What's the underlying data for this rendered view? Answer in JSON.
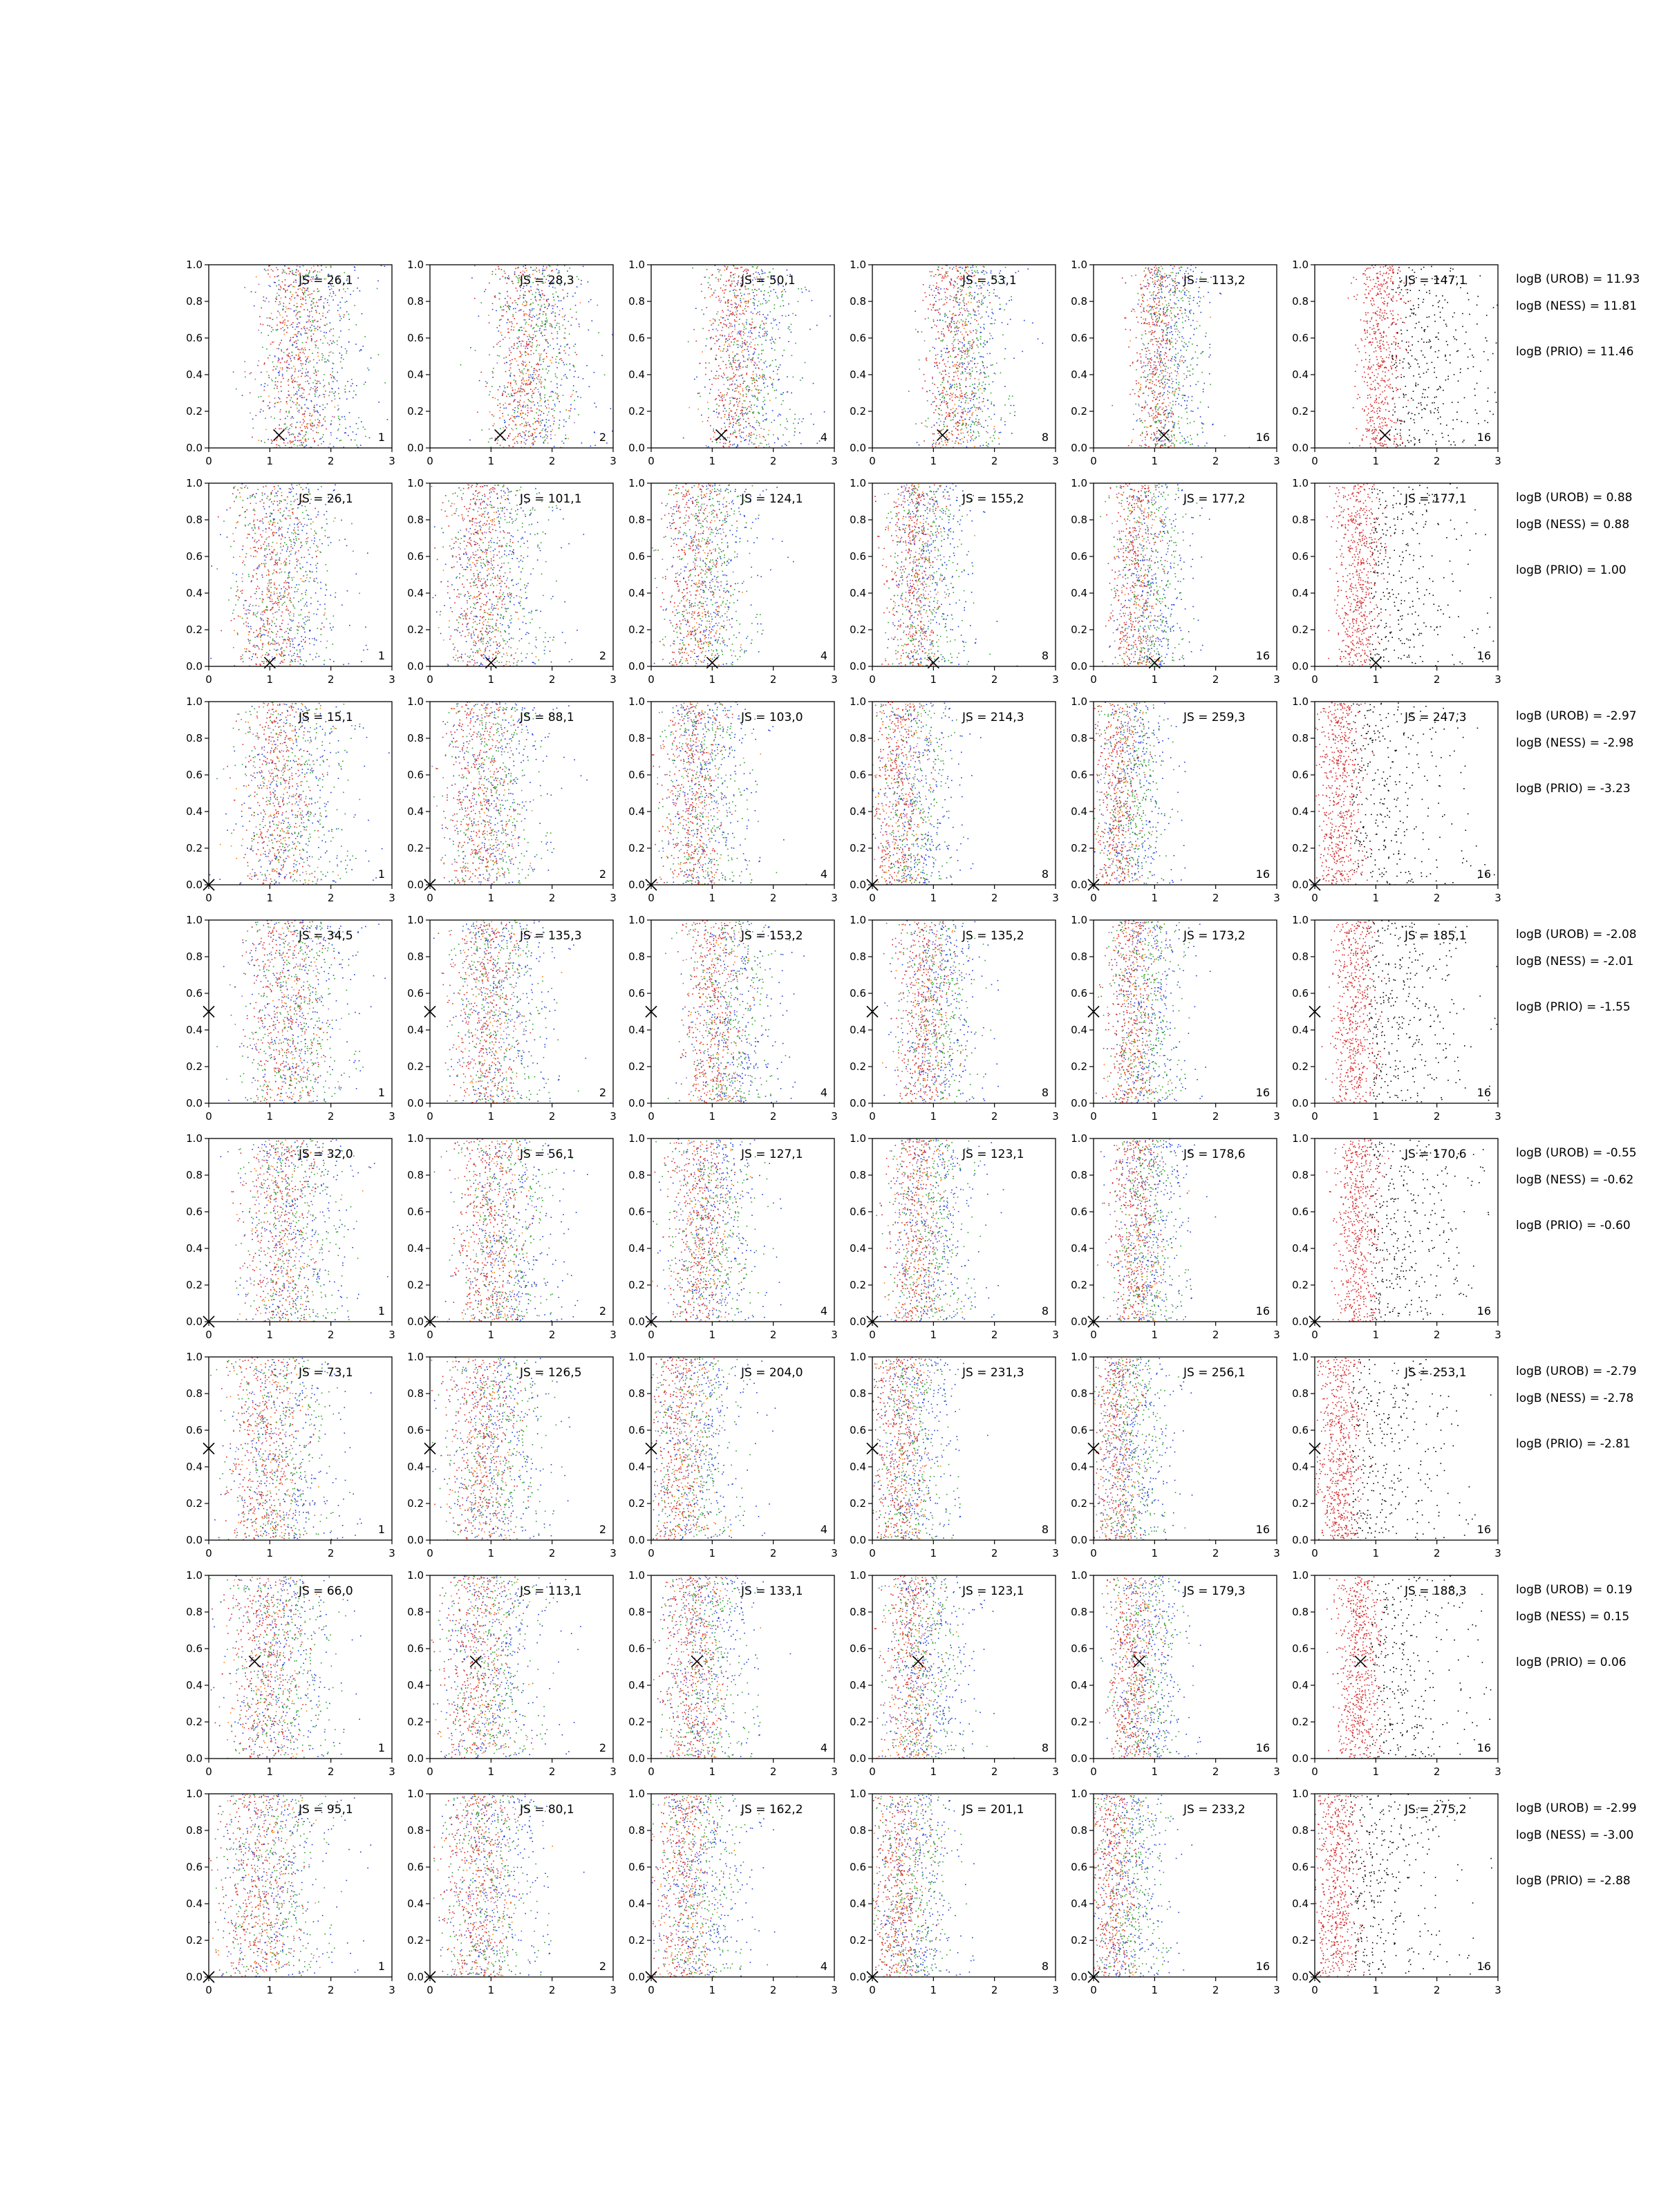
{
  "chart_data": {
    "type": "scatter",
    "layout": {
      "rows": 8,
      "cols": 6
    },
    "xlim": [
      0,
      3
    ],
    "ylim": [
      0,
      1
    ],
    "xticks": [
      0,
      1,
      2,
      3
    ],
    "yticks": [
      0.0,
      0.2,
      0.4,
      0.6,
      0.8,
      1.0
    ],
    "grid": false,
    "point_colors": [
      "#d62728",
      "#2ca02c",
      "#1f3fd6",
      "#ff7f0e",
      "#9467bd",
      "#000000"
    ],
    "panel_labels": [
      "1",
      "2",
      "4",
      "8",
      "16",
      "16"
    ],
    "rows": [
      {
        "js": [
          "JS = 26,1",
          "JS = 28,3",
          "JS = 50,1",
          "JS = 53,1",
          "JS = 113,2",
          "JS = 147,1"
        ],
        "true_value": [
          1.15,
          0.07
        ],
        "centers": [
          1.5,
          1.6,
          1.45,
          1.4,
          1.1,
          1.05
        ],
        "logB": {
          "urob": "logB (UROB) = 11.93",
          "ness": "logB (NESS) = 11.81",
          "prio": "logB (PRIO) = 11.46"
        }
      },
      {
        "js": [
          "JS = 26,1",
          "JS = 101,1",
          "JS = 124,1",
          "JS = 155,2",
          "JS = 177,2",
          "JS = 177,1"
        ],
        "true_value": [
          1.0,
          0.02
        ],
        "centers": [
          1.1,
          0.9,
          0.8,
          0.75,
          0.75,
          0.7
        ],
        "logB": {
          "urob": "logB (UROB) = 0.88",
          "ness": "logB (NESS) = 0.88",
          "prio": "logB (PRIO) = 1.00"
        }
      },
      {
        "js": [
          "JS = 15,1",
          "JS = 88,1",
          "JS = 103,0",
          "JS = 214,3",
          "JS = 259,3",
          "JS = 247,3"
        ],
        "true_value": [
          0.0,
          0.0
        ],
        "centers": [
          1.2,
          0.9,
          0.75,
          0.5,
          0.45,
          0.4
        ],
        "logB": {
          "urob": "logB (UROB) = -2.97",
          "ness": "logB (NESS) = -2.98",
          "prio": "logB (PRIO) = -3.23"
        }
      },
      {
        "js": [
          "JS = 34,5",
          "JS = 135,3",
          "JS = 153,2",
          "JS = 135,2",
          "JS = 173,2",
          "JS = 185,1"
        ],
        "true_value": [
          0.0,
          0.5
        ],
        "centers": [
          1.3,
          1.0,
          1.1,
          0.9,
          0.7,
          0.65
        ],
        "logB": {
          "urob": "logB (UROB) = -2.08",
          "ness": "logB (NESS) = -2.01",
          "prio": "logB (PRIO) = -1.55"
        }
      },
      {
        "js": [
          "JS = 32,0",
          "JS = 56,1",
          "JS = 127,1",
          "JS = 123,1",
          "JS = 178,6",
          "JS = 170,6"
        ],
        "true_value": [
          0.0,
          0.0
        ],
        "centers": [
          1.25,
          1.05,
          0.85,
          0.8,
          0.75,
          0.7
        ],
        "logB": {
          "urob": "logB (UROB) = -0.55",
          "ness": "logB (NESS) = -0.62",
          "prio": "logB (PRIO) = -0.60"
        }
      },
      {
        "js": [
          "JS = 73,1",
          "JS = 126,5",
          "JS = 204,0",
          "JS = 231,3",
          "JS = 256,1",
          "JS = 253,1"
        ],
        "true_value": [
          0.0,
          0.5
        ],
        "centers": [
          1.0,
          0.9,
          0.55,
          0.5,
          0.45,
          0.4
        ],
        "logB": {
          "urob": "logB (UROB) = -2.79",
          "ness": "logB (NESS) = -2.78",
          "prio": "logB (PRIO) = -2.81"
        }
      },
      {
        "js": [
          "JS = 66,0",
          "JS = 113,1",
          "JS = 133,1",
          "JS = 123,1",
          "JS = 179,3",
          "JS = 188,3"
        ],
        "true_value": [
          0.75,
          0.53
        ],
        "centers": [
          1.0,
          0.85,
          0.75,
          0.7,
          0.7,
          0.7
        ],
        "logB": {
          "urob": "logB (UROB) = 0.19",
          "ness": "logB (NESS) = 0.15",
          "prio": "logB (PRIO) = 0.06"
        }
      },
      {
        "js": [
          "JS = 95,1",
          "JS = 80,1",
          "JS = 162,2",
          "JS = 201,1",
          "JS = 233,2",
          "JS = 275,2"
        ],
        "true_value": [
          0.0,
          0.0
        ],
        "centers": [
          0.9,
          0.85,
          0.6,
          0.5,
          0.4,
          0.35
        ],
        "logB": {
          "urob": "logB (UROB) = -2.99",
          "ness": "logB (NESS) = -3.00",
          "prio": "logB (PRIO) = -2.88"
        }
      }
    ]
  }
}
